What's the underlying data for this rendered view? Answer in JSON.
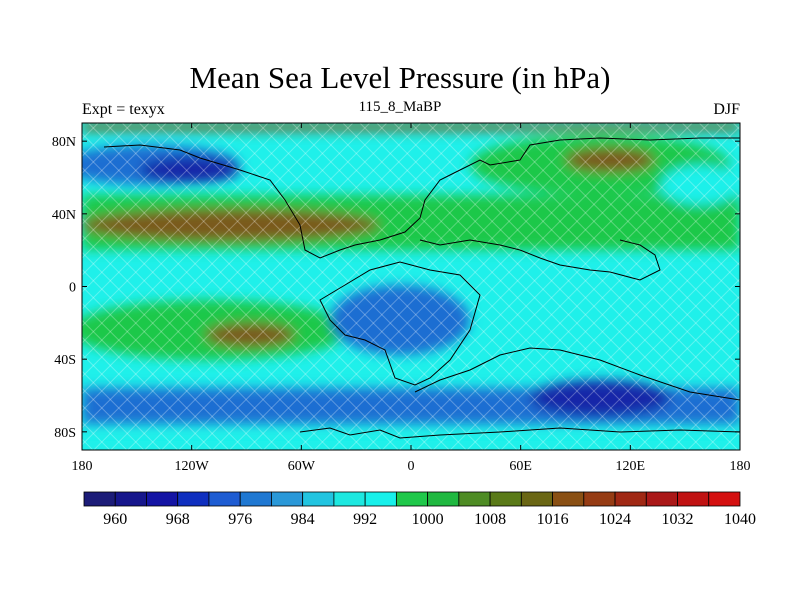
{
  "map": {
    "title": "Mean Sea Level Pressure (in hPa)",
    "subtitle_left": "Expt = texyx",
    "subtitle_center": "115_8_MaBP",
    "subtitle_right": "DJF",
    "lon_ticks": [
      {
        "value": -180,
        "label": "180"
      },
      {
        "value": -120,
        "label": "120W"
      },
      {
        "value": -60,
        "label": "60W"
      },
      {
        "value": 0,
        "label": "0"
      },
      {
        "value": 60,
        "label": "60E"
      },
      {
        "value": 120,
        "label": "120E"
      },
      {
        "value": 180,
        "label": "180"
      }
    ],
    "lat_ticks": [
      {
        "value": 80,
        "label": "80N"
      },
      {
        "value": 40,
        "label": "40N"
      },
      {
        "value": 0,
        "label": "0"
      },
      {
        "value": -40,
        "label": "40S"
      },
      {
        "value": -80,
        "label": "80S"
      }
    ],
    "lon_range": [
      -180,
      180
    ],
    "lat_range": [
      -90,
      90
    ],
    "colorbar": {
      "colors": [
        "#1c1c78",
        "#16168c",
        "#1414a4",
        "#0f2fbf",
        "#1e5cd2",
        "#1f78d2",
        "#2a98d8",
        "#22c4e0",
        "#1de8e0",
        "#18f0ea",
        "#1fc84a",
        "#1fb840",
        "#4e8c24",
        "#5a7a18",
        "#6a6614",
        "#8a5014",
        "#963c14",
        "#a02814",
        "#aa1818",
        "#c01212",
        "#d41010"
      ],
      "labels": [
        {
          "value": 960,
          "label": "960"
        },
        {
          "value": 968,
          "label": "968"
        },
        {
          "value": 976,
          "label": "976"
        },
        {
          "value": 984,
          "label": "984"
        },
        {
          "value": 992,
          "label": "992"
        },
        {
          "value": 1000,
          "label": "1000"
        },
        {
          "value": 1008,
          "label": "1008"
        },
        {
          "value": 1016,
          "label": "1016"
        },
        {
          "value": 1024,
          "label": "1024"
        },
        {
          "value": 1032,
          "label": "1032"
        },
        {
          "value": 1040,
          "label": "1040"
        }
      ]
    },
    "fill_colors": {
      "background": "#22dede",
      "cyan": "#1ff0ea",
      "green": "#1fc84a",
      "brown": "#7a5a1e",
      "blue": "#1e6ed2",
      "deep_blue": "#1428a8",
      "coast": "#000000"
    }
  }
}
